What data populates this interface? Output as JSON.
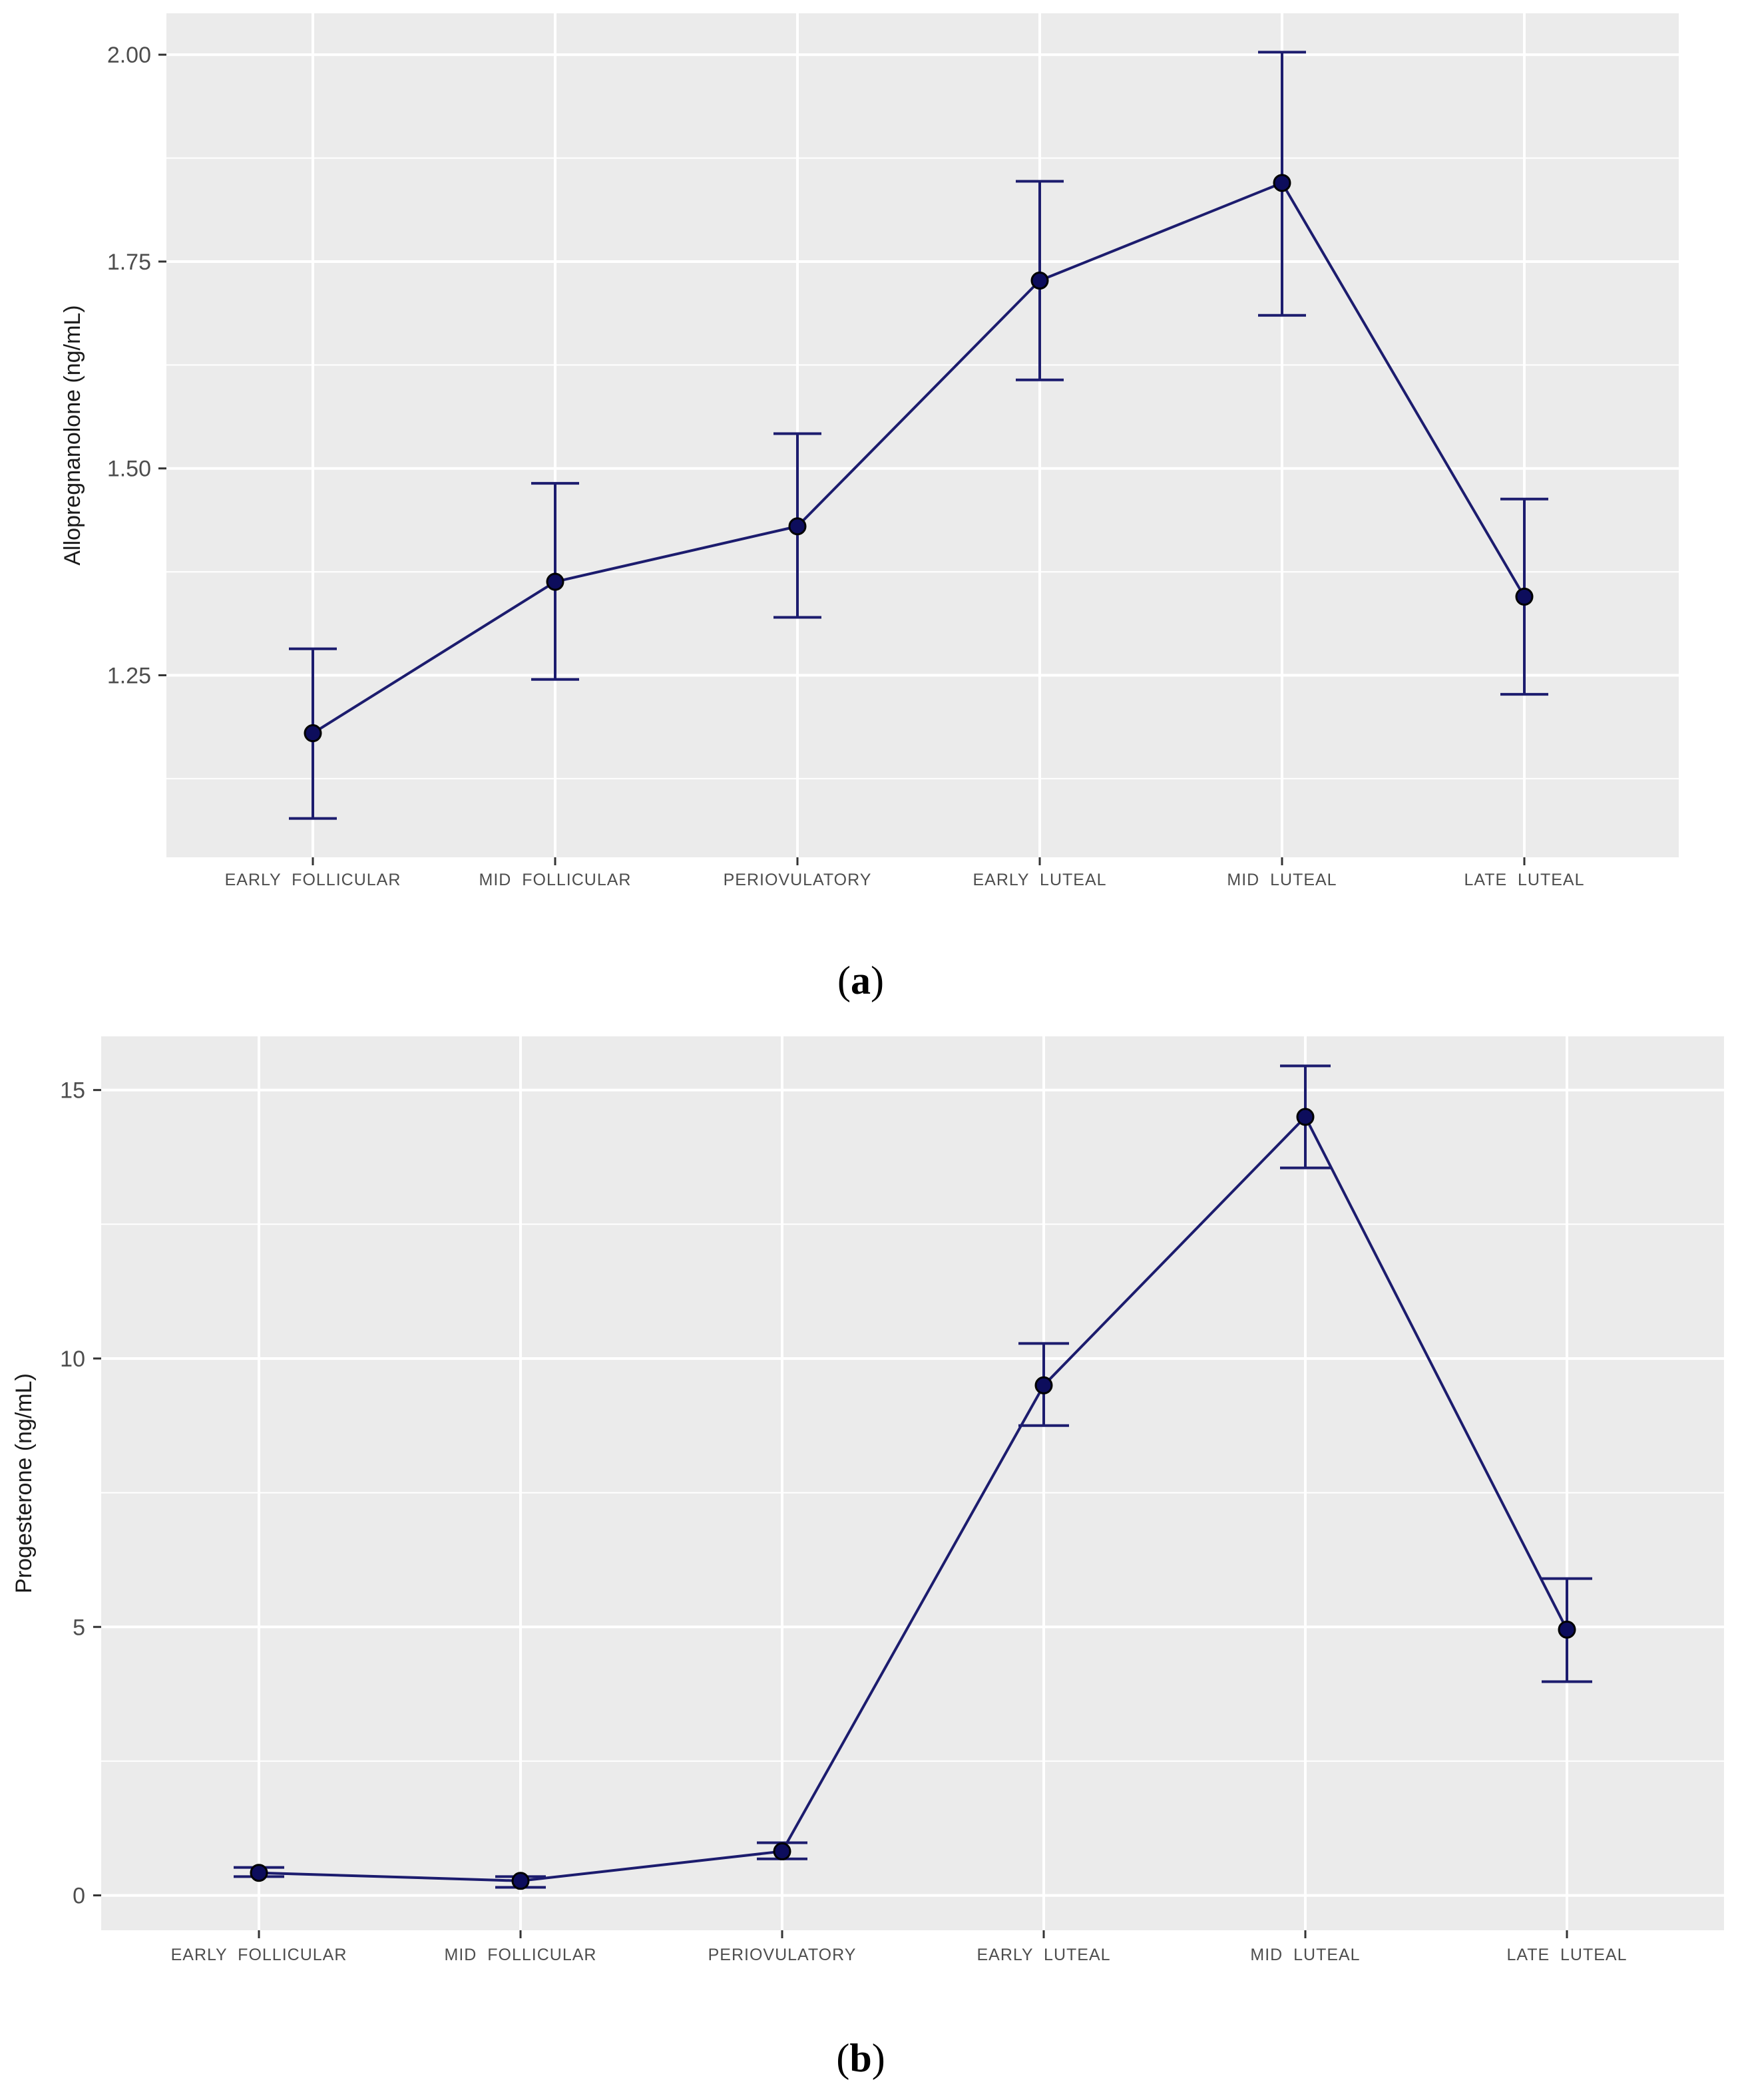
{
  "chart_data": [
    {
      "type": "line",
      "panel_label": "a",
      "title": "",
      "xlabel": "",
      "ylabel": "Allopregnanolone (ng/mL)",
      "categories": [
        "EARLY  FOLLICULAR",
        "MID  FOLLICULAR",
        "PERIOVULATORY",
        "EARLY  LUTEAL",
        "MID  LUTEAL",
        "LATE  LUTEAL"
      ],
      "series": [
        {
          "name": "Allopregnanolone",
          "values": [
            1.18,
            1.363,
            1.43,
            1.727,
            1.845,
            1.345
          ],
          "error_low": [
            1.077,
            1.245,
            1.32,
            1.607,
            1.685,
            1.227
          ],
          "error_high": [
            1.282,
            1.482,
            1.542,
            1.847,
            2.003,
            1.463
          ]
        }
      ],
      "ylim": [
        1.03,
        2.05
      ],
      "yticks": [
        1.25,
        1.5,
        1.75,
        2.0
      ],
      "ytick_labels": [
        "1.25",
        "1.50",
        "1.75",
        "2.00"
      ],
      "yminor": [
        1.125,
        1.375,
        1.625,
        1.875
      ],
      "grid": true,
      "colors": {
        "line": "#1c1c6e",
        "point": "#0d0d5c",
        "panel_bg": "#ebebeb",
        "grid": "#ffffff"
      }
    },
    {
      "type": "line",
      "panel_label": "b",
      "title": "",
      "xlabel": "",
      "ylabel": "Progesterone (ng/mL)",
      "categories": [
        "EARLY  FOLLICULAR",
        "MID  FOLLICULAR",
        "PERIOVULATORY",
        "EARLY  LUTEAL",
        "MID  LUTEAL",
        "LATE  LUTEAL"
      ],
      "series": [
        {
          "name": "Progesterone",
          "values": [
            0.42,
            0.27,
            0.82,
            9.5,
            14.5,
            4.95
          ],
          "error_low": [
            0.35,
            0.15,
            0.68,
            8.75,
            13.55,
            3.98
          ],
          "error_high": [
            0.52,
            0.35,
            0.98,
            10.28,
            15.45,
            5.9
          ]
        }
      ],
      "ylim": [
        -0.65,
        16.0
      ],
      "yticks": [
        0,
        5,
        10,
        15
      ],
      "ytick_labels": [
        "0",
        "5",
        "10",
        "15"
      ],
      "yminor": [
        2.5,
        7.5,
        12.5
      ],
      "grid": true,
      "colors": {
        "line": "#1c1c6e",
        "point": "#0d0d5c",
        "panel_bg": "#ebebeb",
        "grid": "#ffffff"
      }
    }
  ]
}
